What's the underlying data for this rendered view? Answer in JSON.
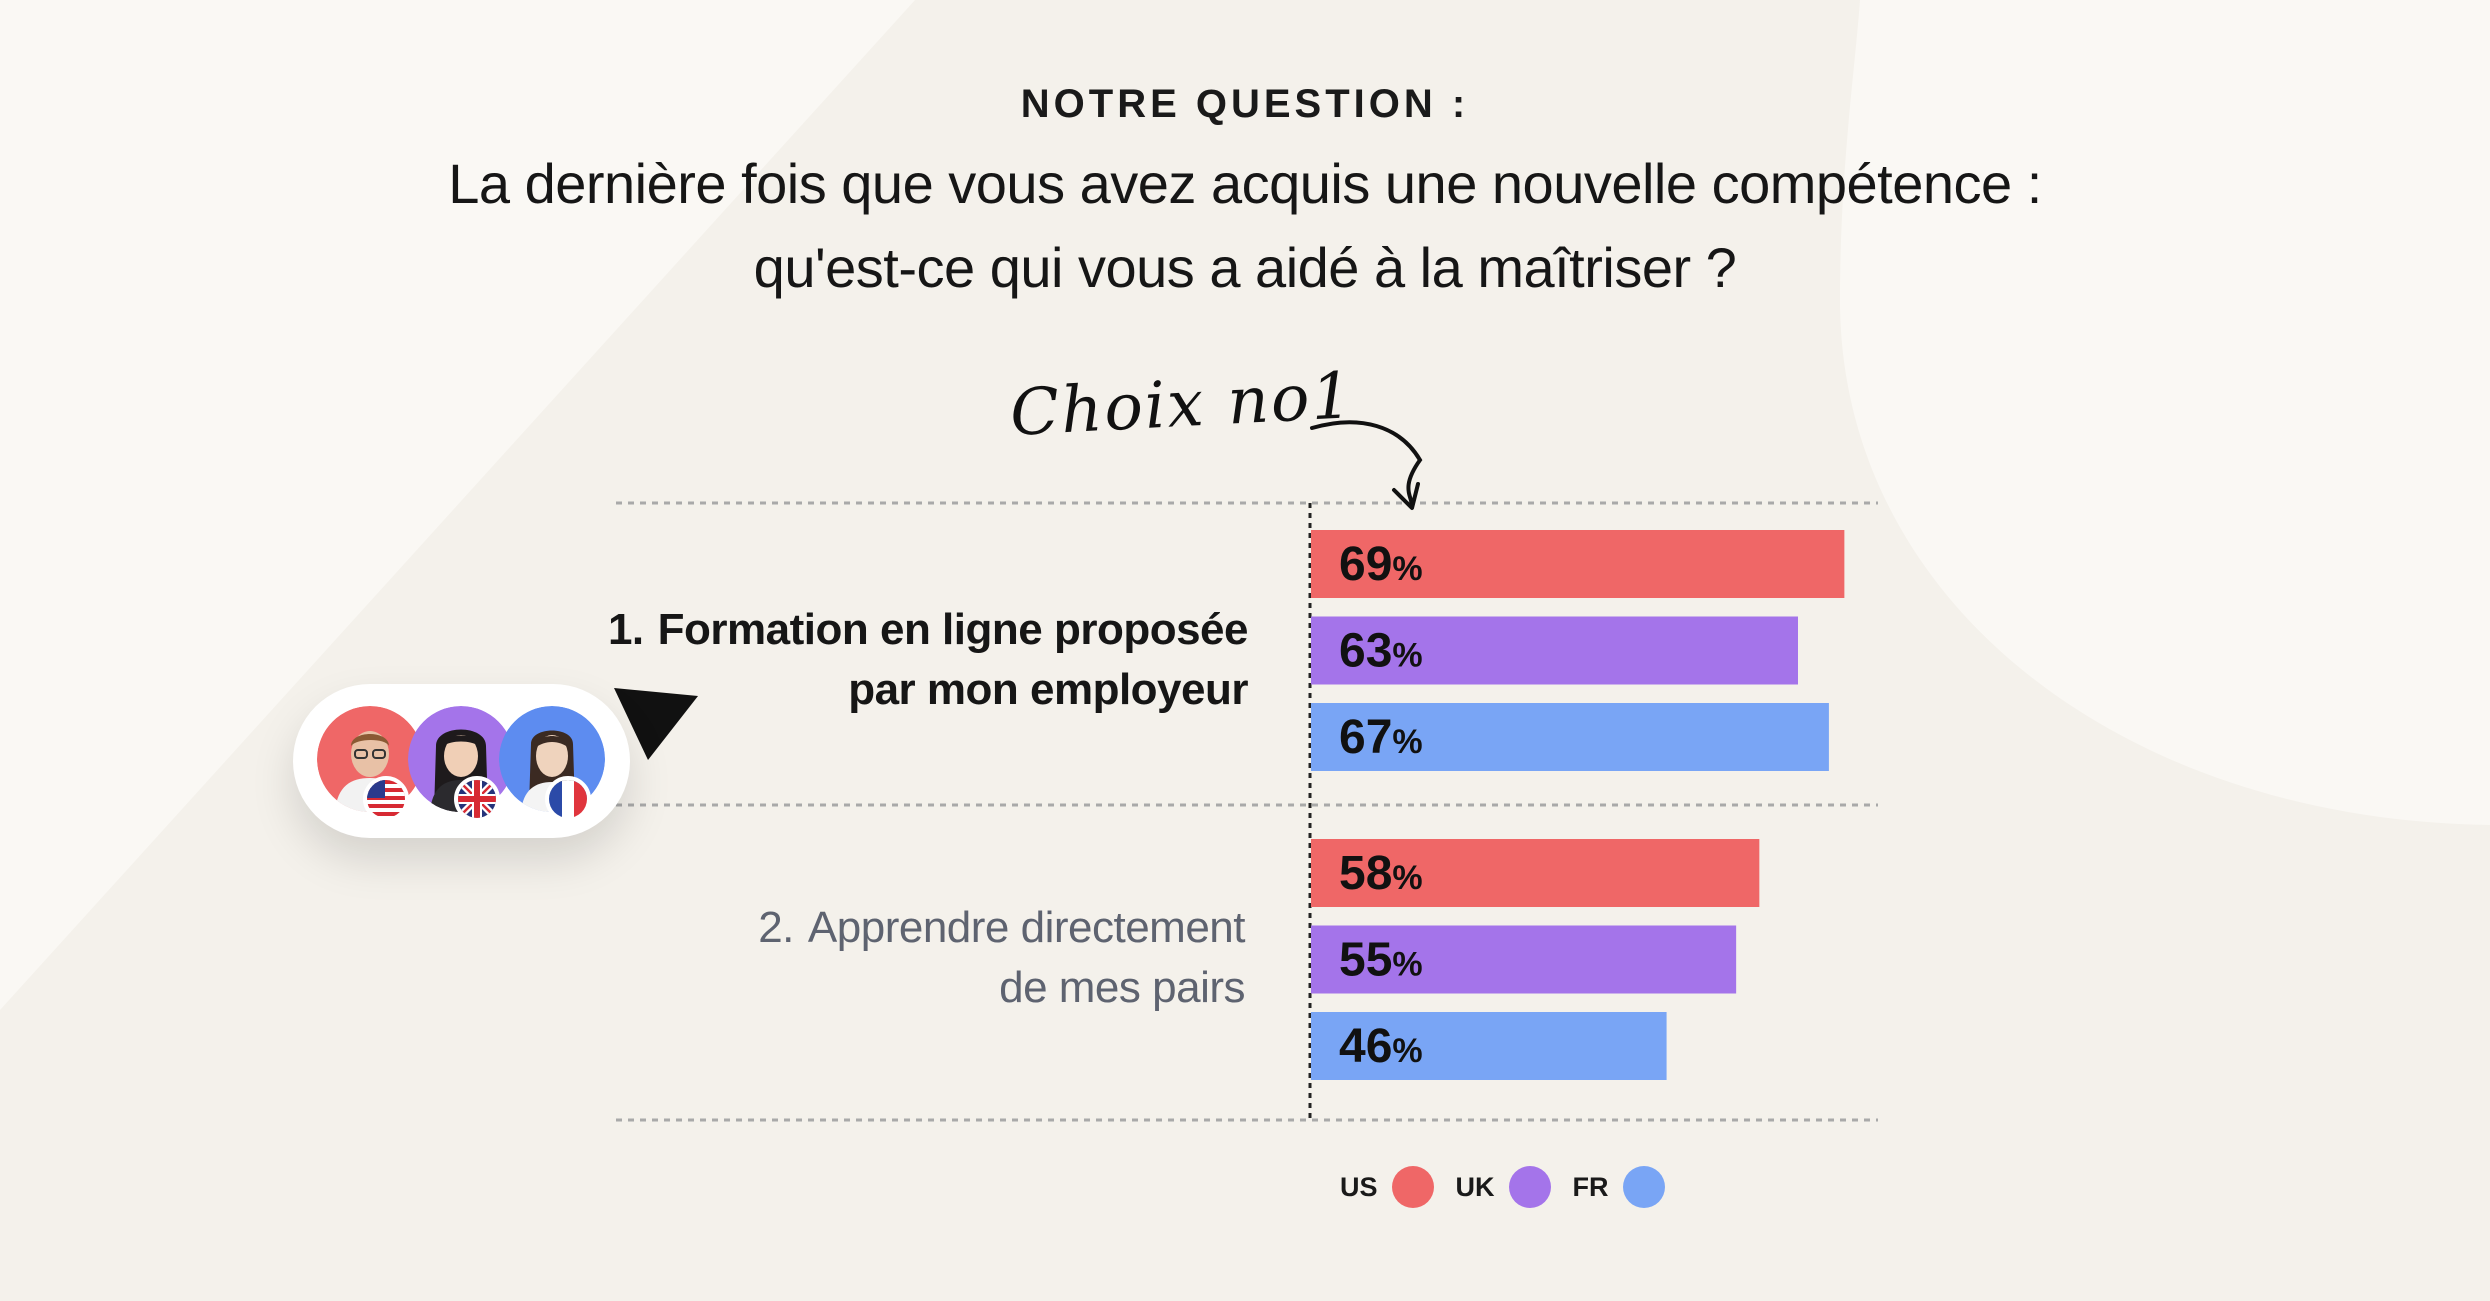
{
  "header": {
    "eyebrow": "NOTRE QUESTION :",
    "question_line1": "La dernière fois que vous avez acquis une nouvelle compétence :",
    "question_line2": "qu'est-ce qui vous a aidé à la maîtriser ?"
  },
  "annotation": {
    "text": "Choix no1",
    "icon": "curved-arrow-icon"
  },
  "chart_data": {
    "type": "bar",
    "orientation": "horizontal",
    "categories": [
      {
        "number": "1.",
        "line1": "Formation en ligne proposée",
        "line2": "par mon employeur"
      },
      {
        "number": "2.",
        "line1": "Apprendre directement",
        "line2": "de mes pairs"
      }
    ],
    "series": [
      {
        "name": "US",
        "color": "#ef6767",
        "values": [
          69,
          58
        ]
      },
      {
        "name": "UK",
        "color": "#a474ea",
        "values": [
          63,
          55
        ]
      },
      {
        "name": "FR",
        "color": "#79a5f5",
        "values": [
          67,
          46
        ]
      }
    ],
    "value_suffix": "%",
    "xlim": [
      0,
      100
    ],
    "legend_position": "bottom",
    "grid": false
  },
  "avatars": [
    {
      "name": "us-person-avatar",
      "flag": "us-flag-icon",
      "color": "#ef6767"
    },
    {
      "name": "uk-person-avatar",
      "flag": "uk-flag-icon",
      "color": "#a474ea"
    },
    {
      "name": "fr-person-avatar",
      "flag": "fr-flag-icon",
      "color": "#5d8cf0"
    }
  ],
  "colors": {
    "background": "#f4f1eb",
    "background_shape": "#f8f6f1",
    "us": "#ef6767",
    "uk": "#a474ea",
    "fr": "#79a5f5"
  }
}
